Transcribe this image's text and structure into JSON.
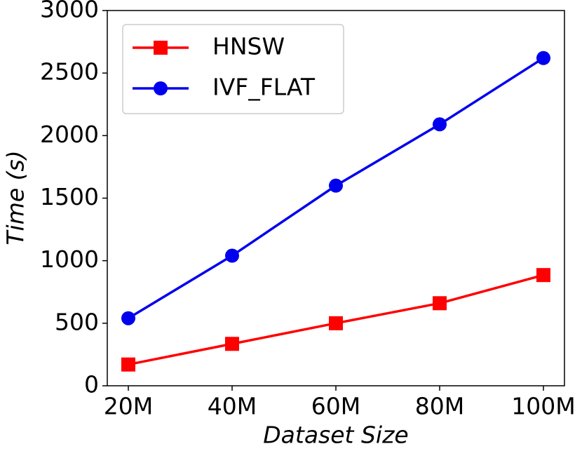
{
  "chart_data": {
    "type": "line",
    "xlabel": "Dataset Size",
    "ylabel": "Time (s)",
    "categories": [
      "20M",
      "40M",
      "60M",
      "80M",
      "100M"
    ],
    "series": [
      {
        "name": "HNSW",
        "color": "#ff0000",
        "marker": "square",
        "values": [
          170,
          335,
          500,
          660,
          885
        ]
      },
      {
        "name": "IVF_FLAT",
        "color": "#0000ee",
        "marker": "circle",
        "values": [
          540,
          1040,
          1600,
          2090,
          2620
        ]
      }
    ],
    "ylim": [
      0,
      3000
    ],
    "yticks": [
      0,
      500,
      1000,
      1500,
      2000,
      2500,
      3000
    ],
    "legend": "upper-left"
  }
}
